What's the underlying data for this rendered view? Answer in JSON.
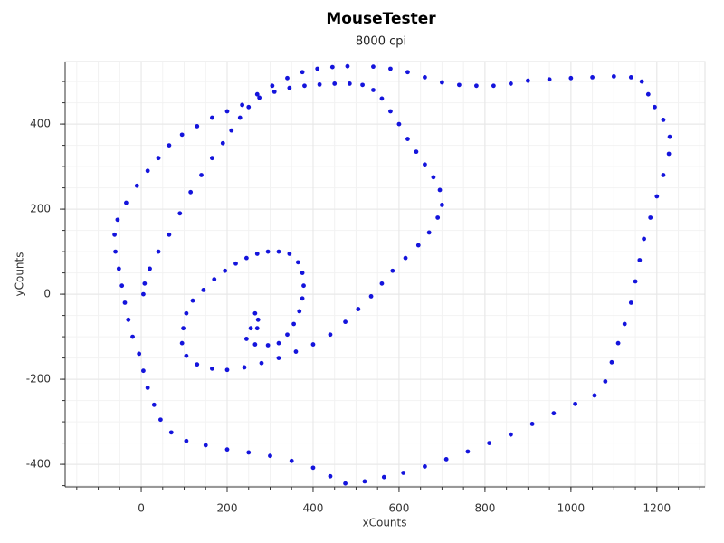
{
  "chart_data": {
    "type": "scatter",
    "title": "MouseTester",
    "subtitle": "8000 cpi",
    "x_label": "xCounts",
    "y_label": "yCounts",
    "color": "#1414dc",
    "xlim": [
      -177,
      1312
    ],
    "ylim": [
      -453,
      547
    ],
    "xticks": [
      0,
      200,
      400,
      600,
      800,
      1000,
      1200
    ],
    "yticks": [
      -400,
      -200,
      0,
      200,
      400
    ],
    "xminorticks": [
      -150,
      -100,
      -50,
      0,
      50,
      100,
      150,
      200,
      250,
      300,
      350,
      400,
      450,
      500,
      550,
      600,
      650,
      700,
      750,
      800,
      850,
      900,
      950,
      1000,
      1050,
      1100,
      1150,
      1200,
      1250,
      1300
    ],
    "yminorticks": [
      -450,
      -400,
      -350,
      -300,
      -250,
      -200,
      -150,
      -100,
      -50,
      0,
      50,
      100,
      150,
      200,
      250,
      300,
      350,
      400,
      450,
      500
    ],
    "grid": true,
    "x": [
      270,
      272,
      265,
      255,
      245,
      265,
      295,
      320,
      340,
      355,
      368,
      375,
      378,
      375,
      365,
      345,
      320,
      295,
      270,
      245,
      220,
      195,
      170,
      145,
      120,
      105,
      98,
      95,
      105,
      130,
      165,
      200,
      240,
      280,
      320,
      360,
      400,
      440,
      475,
      505,
      535,
      560,
      585,
      615,
      645,
      670,
      690,
      700,
      695,
      680,
      660,
      640,
      620,
      600,
      580,
      560,
      540,
      515,
      485,
      450,
      415,
      380,
      345,
      310,
      275,
      250,
      230,
      210,
      190,
      165,
      140,
      115,
      90,
      65,
      40,
      20,
      8,
      5,
      480,
      445,
      410,
      375,
      340,
      305,
      270,
      235,
      200,
      165,
      130,
      95,
      65,
      40,
      15,
      -10,
      -35,
      -55,
      -62,
      -60,
      -52,
      -45,
      -38,
      -30,
      -20,
      -5,
      5,
      15,
      30,
      45,
      70,
      105,
      150,
      200,
      250,
      300,
      350,
      400,
      440,
      475,
      520,
      565,
      610,
      660,
      710,
      760,
      810,
      860,
      910,
      960,
      1010,
      1055,
      1080,
      1095,
      1110,
      1125,
      1140,
      1150,
      1160,
      1170,
      1185,
      1200,
      1215,
      1228,
      1230,
      1215,
      1195,
      1180,
      1165,
      1140,
      1100,
      1050,
      1000,
      950,
      900,
      860,
      820,
      780,
      740,
      700,
      660,
      620,
      580,
      540
    ],
    "y": [
      -80,
      -60,
      -45,
      -80,
      -105,
      -118,
      -120,
      -115,
      -95,
      -70,
      -40,
      -10,
      20,
      50,
      75,
      95,
      100,
      100,
      95,
      85,
      72,
      55,
      35,
      10,
      -15,
      -45,
      -80,
      -115,
      -145,
      -165,
      -175,
      -178,
      -172,
      -162,
      -150,
      -135,
      -118,
      -95,
      -65,
      -35,
      -5,
      25,
      55,
      85,
      115,
      145,
      180,
      210,
      245,
      275,
      305,
      335,
      365,
      400,
      430,
      460,
      480,
      492,
      495,
      495,
      493,
      490,
      485,
      476,
      462,
      440,
      415,
      385,
      355,
      320,
      280,
      240,
      190,
      140,
      100,
      60,
      25,
      0,
      536,
      534,
      530,
      522,
      508,
      490,
      470,
      445,
      430,
      415,
      395,
      375,
      350,
      320,
      290,
      255,
      215,
      175,
      140,
      100,
      60,
      20,
      -20,
      -60,
      -100,
      -140,
      -180,
      -220,
      -260,
      -295,
      -325,
      -345,
      -355,
      -365,
      -372,
      -380,
      -392,
      -408,
      -428,
      -445,
      -440,
      -430,
      -420,
      -405,
      -388,
      -370,
      -350,
      -330,
      -305,
      -280,
      -258,
      -238,
      -205,
      -160,
      -115,
      -70,
      -20,
      30,
      80,
      130,
      180,
      230,
      280,
      330,
      370,
      410,
      440,
      470,
      500,
      510,
      512,
      510,
      508,
      505,
      502,
      495,
      490,
      490,
      492,
      498,
      510,
      522,
      530,
      535
    ]
  }
}
